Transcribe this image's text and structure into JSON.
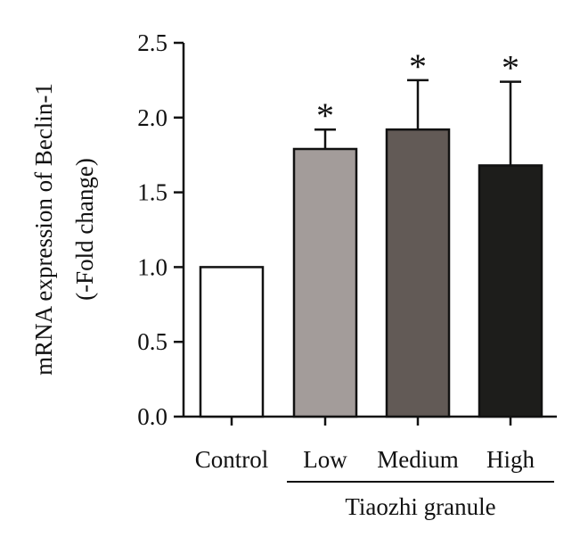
{
  "chart_data": {
    "type": "bar",
    "categories": [
      "Control",
      "Low",
      "Medium",
      "High"
    ],
    "values": [
      1.0,
      1.79,
      1.92,
      1.68
    ],
    "errors": [
      0,
      0.13,
      0.33,
      0.56
    ],
    "significance": [
      "",
      "*",
      "*",
      "*"
    ],
    "bar_colors": [
      "#ffffff",
      "#a39c9a",
      "#625a56",
      "#1d1d1b"
    ],
    "ylabel": "mRNA expression of Beclin-1",
    "ylabel2": "(-Fold change)",
    "ylim": [
      0,
      2.5
    ],
    "yticks": [
      "0.0",
      "0.5",
      "1.0",
      "1.5",
      "2.0",
      "2.5"
    ],
    "group_label": "Tiaozhi granule",
    "grid": false
  }
}
